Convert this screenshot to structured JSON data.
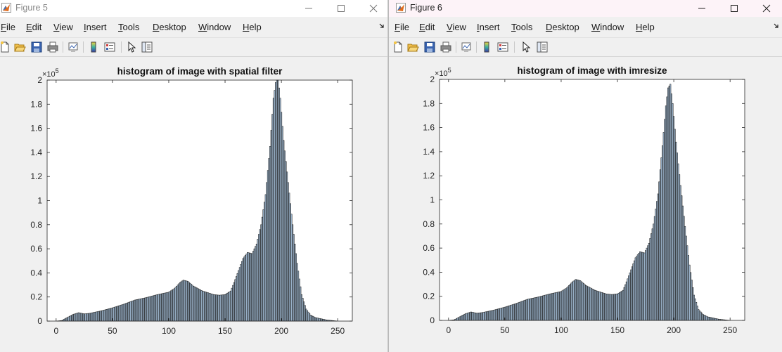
{
  "windows": [
    {
      "title": "Figure 5",
      "menu": [
        {
          "u": "F",
          "rest": "ile"
        },
        {
          "u": "E",
          "rest": "dit"
        },
        {
          "u": "V",
          "rest": "iew"
        },
        {
          "u": "I",
          "rest": "nsert"
        },
        {
          "u": "T",
          "rest": "ools"
        },
        {
          "u": "D",
          "rest": "esktop"
        },
        {
          "u": "W",
          "rest": "indow"
        },
        {
          "u": "H",
          "rest": "elp"
        }
      ],
      "chart": {
        "title": "histogram of image with spatial filter",
        "exponent_base": "×10",
        "exponent_power": "5"
      }
    },
    {
      "title": "Figure 6",
      "menu": [
        {
          "u": "F",
          "rest": "ile"
        },
        {
          "u": "E",
          "rest": "dit"
        },
        {
          "u": "V",
          "rest": "iew"
        },
        {
          "u": "I",
          "rest": "nsert"
        },
        {
          "u": "T",
          "rest": "ools"
        },
        {
          "u": "D",
          "rest": "esktop"
        },
        {
          "u": "W",
          "rest": "indow"
        },
        {
          "u": "H",
          "rest": "elp"
        }
      ],
      "chart": {
        "title": "histogram of image with imresize",
        "exponent_base": "×10",
        "exponent_power": "5"
      }
    }
  ],
  "colors": {
    "bar_fill": "#a9c4de",
    "bar_edge": "#1a1a1a",
    "axis": "#262626",
    "text": "#262626"
  },
  "chart_data": [
    {
      "type": "bar",
      "title": "histogram of image with spatial filter",
      "xlim": [
        -8,
        263
      ],
      "ylim": [
        0,
        2
      ],
      "y_multiplier": "x10^5",
      "xticks": [
        0,
        50,
        100,
        150,
        200,
        250
      ],
      "yticks": [
        0,
        0.2,
        0.4,
        0.6,
        0.8,
        1,
        1.2,
        1.4,
        1.6,
        1.8,
        2
      ],
      "ytick_labels": [
        "0",
        "0.2",
        "0.4",
        "0.6",
        "0.8",
        "1",
        "1.2",
        "1.4",
        "1.6",
        "1.8",
        "2"
      ],
      "anchors": [
        [
          0,
          0
        ],
        [
          5,
          0.005
        ],
        [
          10,
          0.03
        ],
        [
          15,
          0.055
        ],
        [
          20,
          0.07
        ],
        [
          25,
          0.06
        ],
        [
          30,
          0.065
        ],
        [
          40,
          0.085
        ],
        [
          50,
          0.11
        ],
        [
          60,
          0.14
        ],
        [
          70,
          0.175
        ],
        [
          80,
          0.195
        ],
        [
          90,
          0.22
        ],
        [
          100,
          0.24
        ],
        [
          105,
          0.27
        ],
        [
          110,
          0.32
        ],
        [
          113,
          0.34
        ],
        [
          117,
          0.33
        ],
        [
          122,
          0.29
        ],
        [
          130,
          0.25
        ],
        [
          140,
          0.22
        ],
        [
          145,
          0.215
        ],
        [
          150,
          0.22
        ],
        [
          155,
          0.25
        ],
        [
          158,
          0.32
        ],
        [
          162,
          0.42
        ],
        [
          166,
          0.52
        ],
        [
          170,
          0.57
        ],
        [
          174,
          0.56
        ],
        [
          178,
          0.64
        ],
        [
          182,
          0.8
        ],
        [
          186,
          1.05
        ],
        [
          190,
          1.45
        ],
        [
          193,
          1.85
        ],
        [
          195,
          1.98
        ],
        [
          197,
          2.02
        ],
        [
          199,
          1.85
        ],
        [
          202,
          1.5
        ],
        [
          206,
          1.15
        ],
        [
          210,
          0.8
        ],
        [
          214,
          0.48
        ],
        [
          218,
          0.22
        ],
        [
          222,
          0.1
        ],
        [
          226,
          0.05
        ],
        [
          230,
          0.03
        ],
        [
          235,
          0.02
        ],
        [
          240,
          0.01
        ],
        [
          245,
          0.005
        ],
        [
          250,
          0
        ]
      ]
    },
    {
      "type": "bar",
      "title": "histogram of image with imresize",
      "xlim": [
        -8,
        263
      ],
      "ylim": [
        0,
        2
      ],
      "y_multiplier": "x10^5",
      "xticks": [
        0,
        50,
        100,
        150,
        200,
        250
      ],
      "yticks": [
        0,
        0.2,
        0.4,
        0.6,
        0.8,
        1,
        1.2,
        1.4,
        1.6,
        1.8,
        2
      ],
      "ytick_labels": [
        "0",
        "0.2",
        "0.4",
        "0.6",
        "0.8",
        "1",
        "1.2",
        "1.4",
        "1.6",
        "1.8",
        "2"
      ],
      "anchors": [
        [
          0,
          0
        ],
        [
          5,
          0.005
        ],
        [
          10,
          0.03
        ],
        [
          15,
          0.055
        ],
        [
          20,
          0.07
        ],
        [
          25,
          0.06
        ],
        [
          30,
          0.065
        ],
        [
          40,
          0.085
        ],
        [
          50,
          0.11
        ],
        [
          60,
          0.14
        ],
        [
          70,
          0.175
        ],
        [
          80,
          0.195
        ],
        [
          90,
          0.22
        ],
        [
          100,
          0.24
        ],
        [
          105,
          0.27
        ],
        [
          110,
          0.32
        ],
        [
          113,
          0.34
        ],
        [
          117,
          0.33
        ],
        [
          122,
          0.29
        ],
        [
          130,
          0.25
        ],
        [
          140,
          0.22
        ],
        [
          145,
          0.215
        ],
        [
          150,
          0.22
        ],
        [
          155,
          0.25
        ],
        [
          158,
          0.32
        ],
        [
          162,
          0.42
        ],
        [
          166,
          0.52
        ],
        [
          170,
          0.57
        ],
        [
          174,
          0.56
        ],
        [
          178,
          0.64
        ],
        [
          182,
          0.8
        ],
        [
          186,
          1.05
        ],
        [
          190,
          1.45
        ],
        [
          193,
          1.78
        ],
        [
          195,
          1.93
        ],
        [
          197,
          1.96
        ],
        [
          199,
          1.8
        ],
        [
          202,
          1.48
        ],
        [
          206,
          1.12
        ],
        [
          210,
          0.78
        ],
        [
          214,
          0.46
        ],
        [
          218,
          0.21
        ],
        [
          222,
          0.09
        ],
        [
          226,
          0.05
        ],
        [
          230,
          0.03
        ],
        [
          235,
          0.02
        ],
        [
          240,
          0.01
        ],
        [
          245,
          0.005
        ],
        [
          250,
          0
        ]
      ]
    }
  ]
}
